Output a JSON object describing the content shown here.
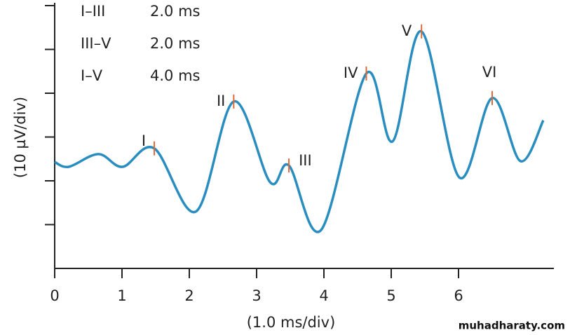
{
  "chart_data": {
    "type": "line",
    "x_label": "(1.0 ms/div)",
    "y_label": "(10 µV/div)",
    "x": [
      0,
      0.21,
      0.65,
      1.01,
      1.48,
      2.1,
      2.66,
      3.2,
      3.48,
      3.96,
      4.63,
      5.02,
      5.45,
      6.01,
      6.5,
      6.92,
      7.26
    ],
    "series": [
      {
        "color": "#2a8dc0",
        "values": [
          2.43,
          2.32,
          2.61,
          2.32,
          2.74,
          1.3,
          3.81,
          1.97,
          2.35,
          0.88,
          4.45,
          2.9,
          5.41,
          2.08,
          3.89,
          2.45,
          3.38
        ]
      }
    ],
    "xlim": [
      0,
      7.4
    ],
    "ylim": [
      0,
      6
    ],
    "xticks": [
      0,
      1,
      2,
      3,
      4,
      5,
      6
    ],
    "yticks": [
      1,
      2,
      3,
      4,
      5,
      6
    ],
    "peak_color": "#e0693a",
    "peaks": [
      {
        "label": "I",
        "x": 1.48,
        "y": 2.74
      },
      {
        "label": "II",
        "x": 2.66,
        "y": 3.81
      },
      {
        "label": "III",
        "x": 3.48,
        "y": 2.35
      },
      {
        "label": "IV",
        "x": 4.63,
        "y": 4.45
      },
      {
        "label": "V",
        "x": 5.45,
        "y": 5.41
      },
      {
        "label": "VI",
        "x": 6.5,
        "y": 3.89
      }
    ],
    "intervals": [
      {
        "label": "I–III",
        "value": "2.0 ms"
      },
      {
        "label": "III–V",
        "value": "2.0 ms"
      },
      {
        "label": "I–V",
        "value": "4.0 ms"
      }
    ]
  },
  "watermark": "muhadharaty.com"
}
